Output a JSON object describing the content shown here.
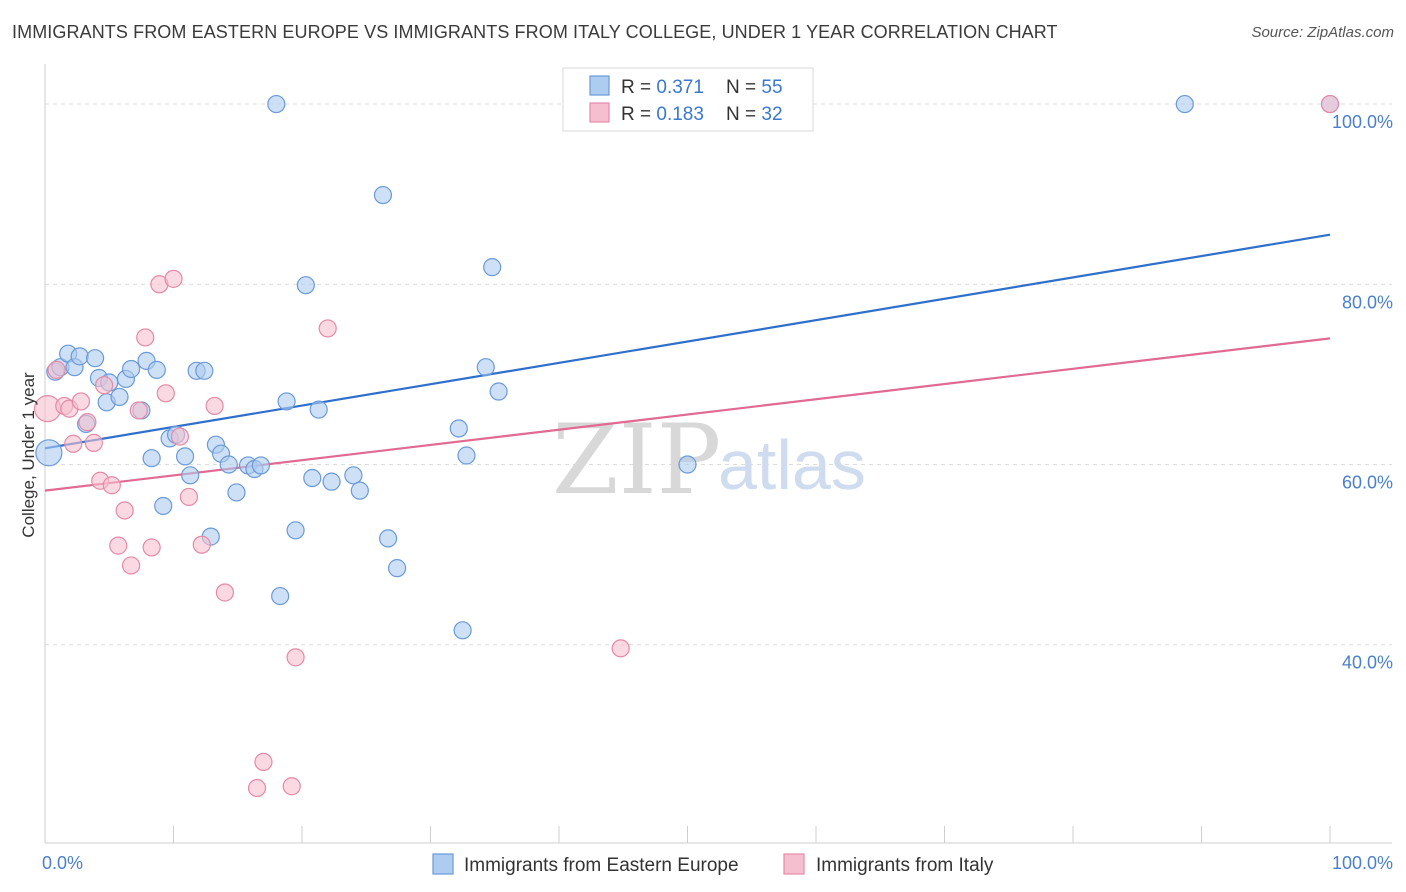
{
  "title": "IMMIGRANTS FROM EASTERN EUROPE VS IMMIGRANTS FROM ITALY COLLEGE, UNDER 1 YEAR CORRELATION CHART",
  "source": "Source: ZipAtlas.com",
  "watermark": {
    "zip": "ZIP",
    "atlas": "atlas"
  },
  "colors": {
    "blue_fill": "#aecbf0",
    "blue_stroke": "#6a9ad8",
    "blue_line": "#2f6fcc",
    "pink_fill": "#f6bfcf",
    "pink_stroke": "#e58aa6",
    "pink_line": "#e06a92",
    "value_text": "#3a78d0",
    "grid": "#dcdcdc"
  },
  "chart_data": {
    "type": "scatter",
    "xlabel": "",
    "ylabel": "College, Under 1 year",
    "xlim": [
      0,
      100
    ],
    "ylim": [
      18,
      104
    ],
    "x_tick_labels": [
      "0.0%",
      "100.0%"
    ],
    "y_ticks": [
      40,
      60,
      80,
      100
    ],
    "y_tick_labels": [
      "40.0%",
      "60.0%",
      "80.0%",
      "100.0%"
    ],
    "grid": "horizontal dashed",
    "legend_placement": "top-center",
    "series": [
      {
        "name": "Immigrants from Eastern Europe",
        "r_label": "R = ",
        "r_value": "0.371",
        "n_label": "N = ",
        "n_value": "55",
        "trend": {
          "x0": 0,
          "y0": 61.8,
          "x1": 100,
          "y1": 85.5
        },
        "points": [
          [
            0.3,
            61.3
          ],
          [
            0.8,
            70.3
          ],
          [
            1.2,
            70.8
          ],
          [
            1.8,
            72.3
          ],
          [
            2.3,
            70.8
          ],
          [
            2.7,
            72.0
          ],
          [
            3.2,
            64.5
          ],
          [
            3.9,
            71.8
          ],
          [
            4.2,
            69.6
          ],
          [
            4.8,
            66.9
          ],
          [
            5.0,
            69.1
          ],
          [
            5.8,
            67.5
          ],
          [
            6.3,
            69.5
          ],
          [
            6.7,
            70.6
          ],
          [
            7.5,
            66.0
          ],
          [
            7.9,
            71.5
          ],
          [
            8.3,
            60.7
          ],
          [
            8.7,
            70.5
          ],
          [
            9.2,
            55.4
          ],
          [
            9.7,
            62.9
          ],
          [
            10.2,
            63.3
          ],
          [
            10.9,
            60.9
          ],
          [
            11.3,
            58.8
          ],
          [
            11.8,
            70.4
          ],
          [
            12.4,
            70.4
          ],
          [
            12.9,
            52.0
          ],
          [
            13.3,
            62.2
          ],
          [
            13.7,
            61.2
          ],
          [
            14.3,
            60.0
          ],
          [
            14.9,
            56.9
          ],
          [
            15.8,
            59.9
          ],
          [
            16.3,
            59.5
          ],
          [
            16.8,
            59.9
          ],
          [
            18.0,
            100.0
          ],
          [
            18.3,
            45.4
          ],
          [
            18.8,
            67.0
          ],
          [
            19.5,
            52.7
          ],
          [
            20.3,
            79.9
          ],
          [
            20.8,
            58.5
          ],
          [
            21.3,
            66.1
          ],
          [
            22.3,
            58.1
          ],
          [
            24.0,
            58.8
          ],
          [
            24.5,
            57.1
          ],
          [
            26.3,
            89.9
          ],
          [
            26.7,
            51.8
          ],
          [
            27.4,
            48.5
          ],
          [
            32.2,
            64.0
          ],
          [
            32.5,
            41.6
          ],
          [
            32.8,
            61.0
          ],
          [
            34.3,
            70.8
          ],
          [
            34.8,
            81.9
          ],
          [
            35.3,
            68.1
          ],
          [
            50.0,
            60.0
          ],
          [
            88.7,
            100.0
          ],
          [
            100.0,
            100.0
          ]
        ]
      },
      {
        "name": "Immigrants from Italy",
        "r_label": "R = ",
        "r_value": "0.183",
        "n_label": "N = ",
        "n_value": "32",
        "trend": {
          "x0": 0,
          "y0": 57.1,
          "x1": 100,
          "y1": 74.0
        },
        "points": [
          [
            0.2,
            66.2
          ],
          [
            0.9,
            70.5
          ],
          [
            1.5,
            66.5
          ],
          [
            1.9,
            66.2
          ],
          [
            2.2,
            62.3
          ],
          [
            2.8,
            67.0
          ],
          [
            3.3,
            64.7
          ],
          [
            3.8,
            62.4
          ],
          [
            4.3,
            58.2
          ],
          [
            4.6,
            68.8
          ],
          [
            5.2,
            57.7
          ],
          [
            5.7,
            51.0
          ],
          [
            6.2,
            54.9
          ],
          [
            6.7,
            48.8
          ],
          [
            7.3,
            66.0
          ],
          [
            7.8,
            74.1
          ],
          [
            8.3,
            50.8
          ],
          [
            8.9,
            80.0
          ],
          [
            9.4,
            67.9
          ],
          [
            10.0,
            80.6
          ],
          [
            10.5,
            63.1
          ],
          [
            11.2,
            56.4
          ],
          [
            12.2,
            51.1
          ],
          [
            13.2,
            66.5
          ],
          [
            14.0,
            45.8
          ],
          [
            16.5,
            24.1
          ],
          [
            17.0,
            27.0
          ],
          [
            19.2,
            24.3
          ],
          [
            19.5,
            38.6
          ],
          [
            22.0,
            75.1
          ],
          [
            44.8,
            39.6
          ],
          [
            100.0,
            100.0
          ]
        ]
      }
    ]
  }
}
